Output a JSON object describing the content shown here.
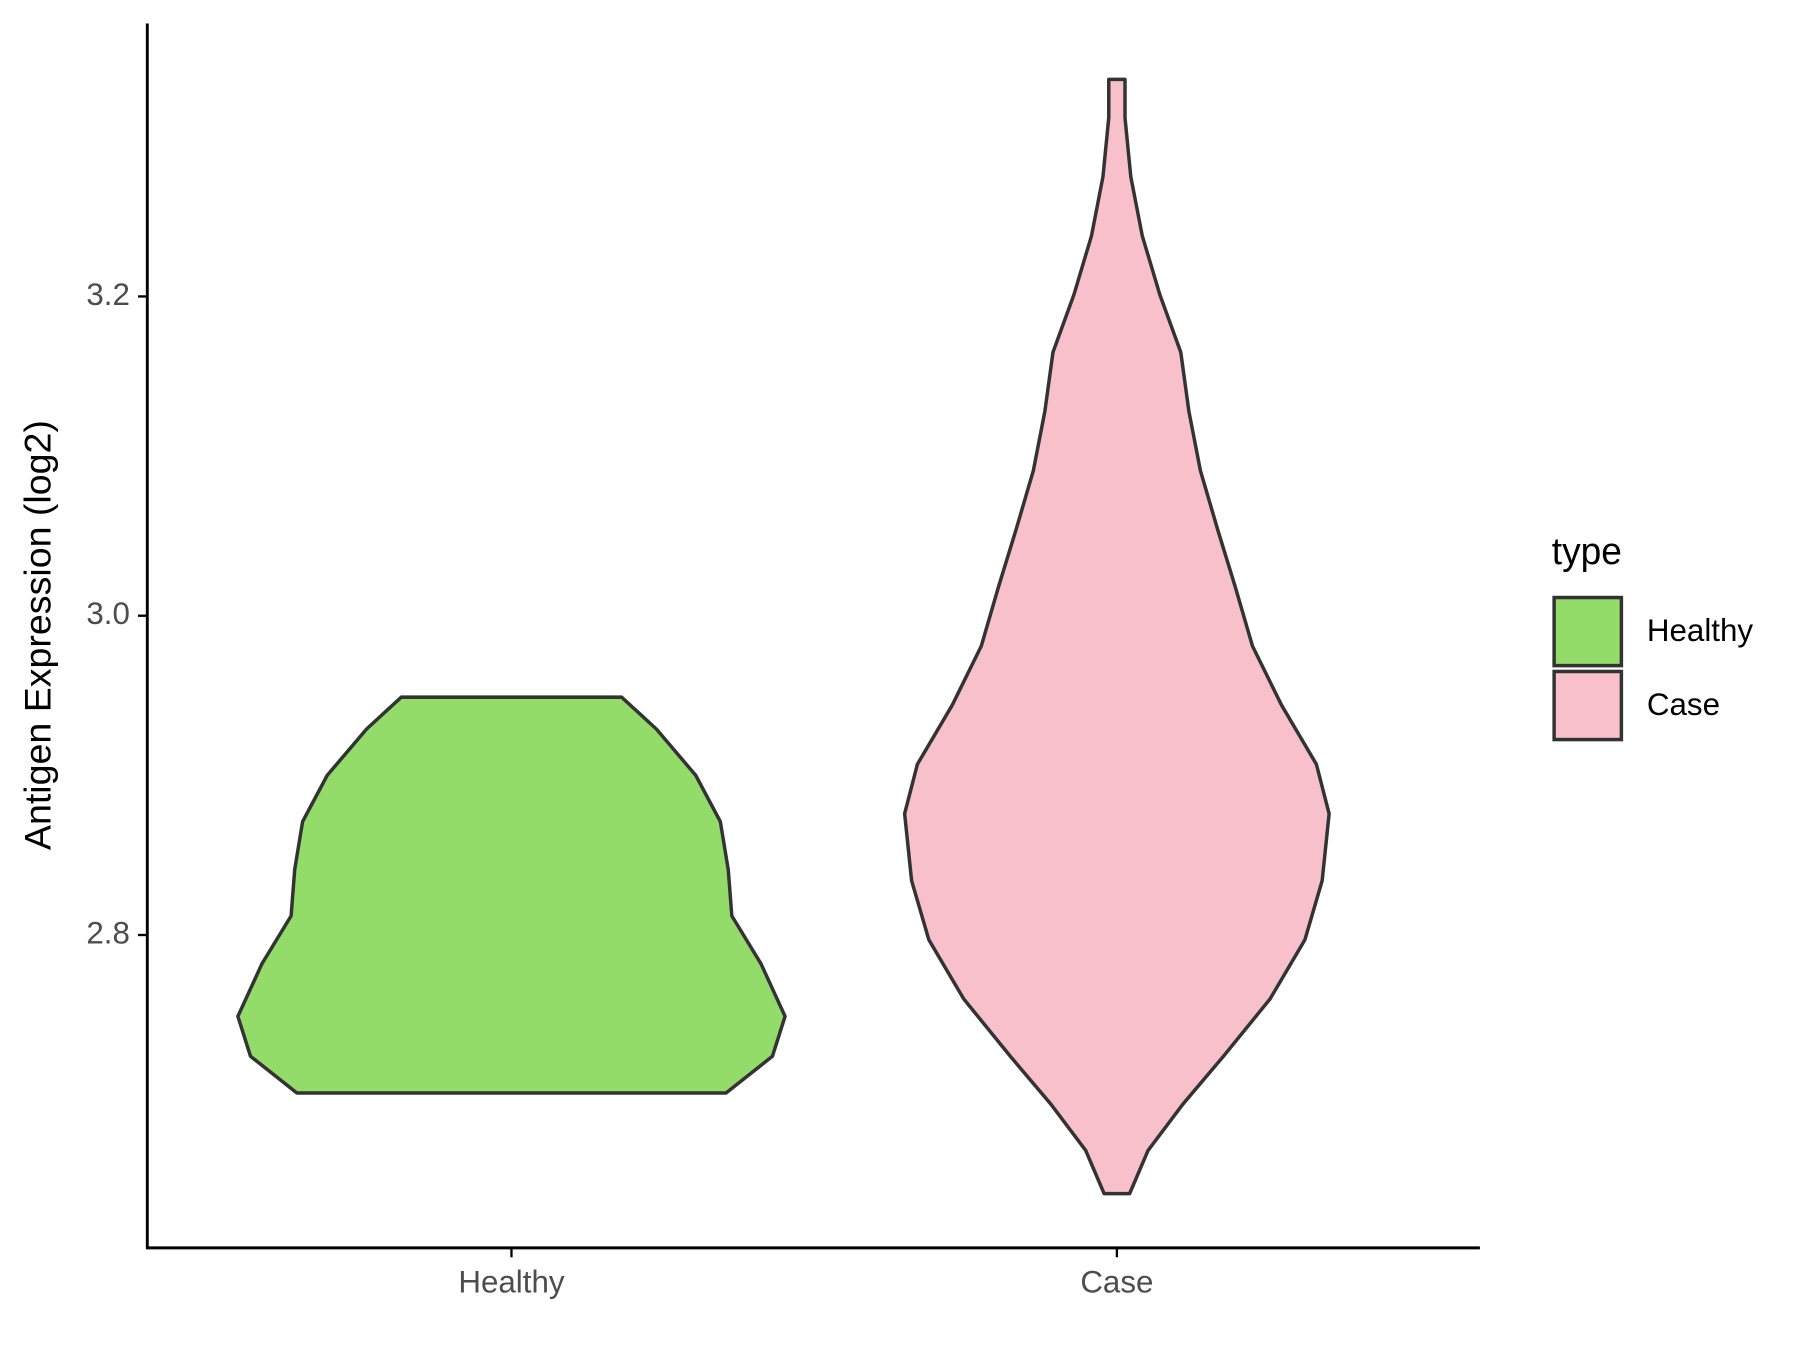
{
  "chart_data": {
    "type": "violin",
    "y_label": "Antigen Expression (log2)",
    "legend_title": "type",
    "categories": [
      "Healthy",
      "Case"
    ],
    "ylim": [
      2.604,
      3.371
    ],
    "yticks": [
      2.8,
      3.0,
      3.2
    ],
    "series": [
      {
        "name": "Healthy",
        "color": "#93dc6a",
        "y": [
          2.701,
          2.724,
          2.749,
          2.782,
          2.812,
          2.841,
          2.871,
          2.9,
          2.929,
          2.949
        ],
        "widths": [
          0.709,
          0.862,
          0.904,
          0.824,
          0.728,
          0.716,
          0.69,
          0.609,
          0.479,
          0.364
        ]
      },
      {
        "name": "Case",
        "color": "#f7c0cb",
        "y": [
          2.638,
          2.665,
          2.694,
          2.724,
          2.76,
          2.797,
          2.834,
          2.876,
          2.907,
          2.944,
          2.981,
          3.018,
          3.054,
          3.091,
          3.128,
          3.165,
          3.201,
          3.238,
          3.275,
          3.312,
          3.336
        ],
        "widths": [
          0.042,
          0.103,
          0.218,
          0.352,
          0.506,
          0.621,
          0.678,
          0.701,
          0.659,
          0.544,
          0.448,
          0.391,
          0.333,
          0.276,
          0.238,
          0.211,
          0.142,
          0.084,
          0.046,
          0.027,
          0.027
        ]
      }
    ]
  }
}
